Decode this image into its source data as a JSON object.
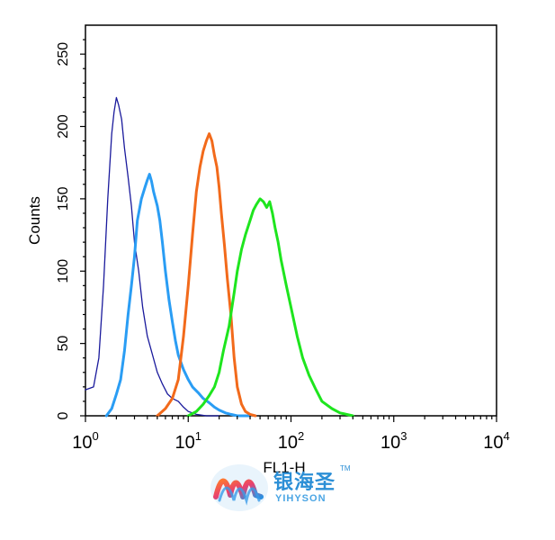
{
  "chart_data": {
    "type": "line",
    "title": "",
    "xlabel": "FL1-H",
    "ylabel": "Counts",
    "xscale": "log",
    "xlim": [
      1,
      10000
    ],
    "ylim": [
      0,
      270
    ],
    "grid": false,
    "x_ticks": [
      {
        "value": 1,
        "base": "10",
        "exp": "0"
      },
      {
        "value": 10,
        "base": "10",
        "exp": "1"
      },
      {
        "value": 100,
        "base": "10",
        "exp": "2"
      },
      {
        "value": 1000,
        "base": "10",
        "exp": "3"
      },
      {
        "value": 10000,
        "base": "10",
        "exp": "4"
      }
    ],
    "y_ticks": [
      0,
      50,
      100,
      150,
      200,
      250
    ],
    "series": [
      {
        "color": "#1a1a9c",
        "width": 1.3,
        "x": [
          1.0,
          1.2,
          1.35,
          1.5,
          1.65,
          1.8,
          1.9,
          2.0,
          2.1,
          2.25,
          2.4,
          2.6,
          2.8,
          3.0,
          3.3,
          3.6,
          4.0,
          4.5,
          5.0,
          5.6,
          6.3,
          7.0,
          8.0,
          9.0,
          10.0,
          12.0,
          15.0,
          20.0
        ],
        "y": [
          18,
          20,
          40,
          90,
          150,
          195,
          210,
          220,
          215,
          205,
          185,
          165,
          145,
          120,
          100,
          75,
          55,
          42,
          30,
          22,
          15,
          12,
          10,
          6,
          3,
          1,
          0,
          0
        ]
      },
      {
        "color": "#2a9df4",
        "width": 3,
        "x": [
          1.6,
          1.8,
          2.0,
          2.2,
          2.4,
          2.6,
          2.8,
          3.0,
          3.2,
          3.5,
          3.8,
          4.0,
          4.2,
          4.4,
          4.6,
          4.8,
          5.0,
          5.3,
          5.6,
          6.0,
          6.5,
          7.0,
          7.5,
          8.0,
          9.0,
          10.0,
          11.0,
          12.5,
          14.0,
          16.0,
          18.0,
          20.0,
          23.0,
          26.0,
          30.0,
          35.0,
          40.0
        ],
        "y": [
          0,
          5,
          15,
          25,
          45,
          70,
          90,
          110,
          135,
          150,
          158,
          163,
          167,
          162,
          155,
          150,
          145,
          135,
          120,
          100,
          80,
          65,
          52,
          42,
          32,
          25,
          20,
          16,
          12,
          9,
          6,
          4,
          2,
          1,
          0,
          0,
          0
        ]
      },
      {
        "color": "#f26a1b",
        "width": 3,
        "x": [
          5.0,
          6.0,
          7.0,
          8.0,
          9.0,
          10.0,
          11.0,
          12.0,
          13.0,
          14.0,
          15.0,
          16.0,
          17.0,
          18.0,
          19.0,
          20.0,
          21.0,
          22.5,
          24.0,
          26.0,
          28.0,
          30.0,
          33.0,
          36.0,
          40.0,
          45.0
        ],
        "y": [
          0,
          5,
          12,
          25,
          55,
          90,
          125,
          155,
          172,
          183,
          190,
          195,
          190,
          180,
          172,
          158,
          140,
          118,
          95,
          70,
          40,
          20,
          8,
          3,
          1,
          0
        ]
      },
      {
        "color": "#1ee51e",
        "width": 3,
        "x": [
          10.0,
          12.0,
          14.0,
          16.0,
          18.0,
          20.0,
          22.0,
          25.0,
          28.0,
          30.0,
          33.0,
          36.0,
          40.0,
          43.0,
          46.0,
          50.0,
          54.0,
          58.0,
          62.0,
          66.0,
          70.0,
          75.0,
          80.0,
          90.0,
          100.0,
          115.0,
          130.0,
          150.0,
          175.0,
          200.0,
          250.0,
          300.0,
          400.0
        ],
        "y": [
          0,
          3,
          8,
          14,
          20,
          30,
          45,
          62,
          85,
          100,
          115,
          125,
          135,
          142,
          146,
          150,
          148,
          144,
          148,
          140,
          130,
          120,
          108,
          90,
          75,
          55,
          40,
          28,
          18,
          10,
          5,
          2,
          0
        ]
      }
    ]
  },
  "watermark": {
    "brand_cn": "银海圣",
    "brand_en": "YIHYSON",
    "trademark": "TM"
  }
}
